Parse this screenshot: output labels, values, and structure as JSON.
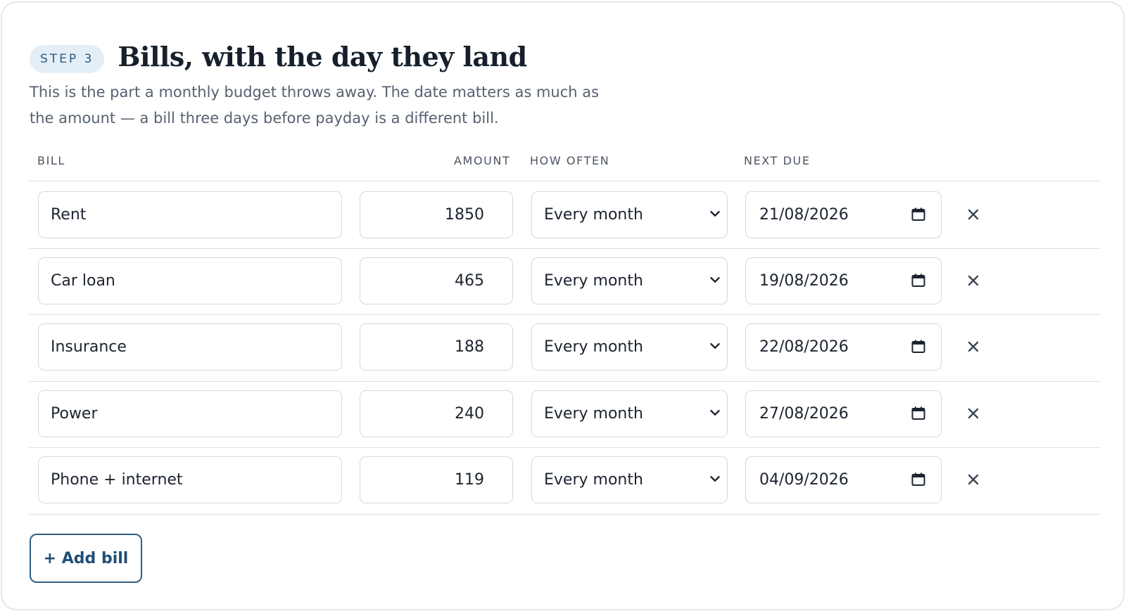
{
  "step": {
    "badge": "STEP 3",
    "title": "Bills, with the day they land"
  },
  "intro": "This is the part a monthly budget throws away. The date matters as much as the amount — a bill three days before payday is a different bill.",
  "columns": {
    "bill": "BILL",
    "amount": "AMOUNT",
    "how_often": "HOW OFTEN",
    "next_due": "NEXT DUE"
  },
  "bills": [
    {
      "name": "Rent",
      "amount": "1850",
      "frequency": "Every month",
      "next_due": "21/08/2026"
    },
    {
      "name": "Car loan",
      "amount": "465",
      "frequency": "Every month",
      "next_due": "19/08/2026"
    },
    {
      "name": "Insurance",
      "amount": "188",
      "frequency": "Every month",
      "next_due": "22/08/2026"
    },
    {
      "name": "Power",
      "amount": "240",
      "frequency": "Every month",
      "next_due": "27/08/2026"
    },
    {
      "name": "Phone + internet",
      "amount": "119",
      "frequency": "Every month",
      "next_due": "04/09/2026"
    }
  ],
  "add_button": "+ Add bill",
  "icons": {
    "frequency_dropdown": "chevron-down-icon",
    "date_picker": "calendar-icon",
    "remove": "close-icon"
  },
  "colors": {
    "accent": "#1f4e78",
    "badge_bg": "#e4eef6",
    "border": "#d3d9df"
  }
}
